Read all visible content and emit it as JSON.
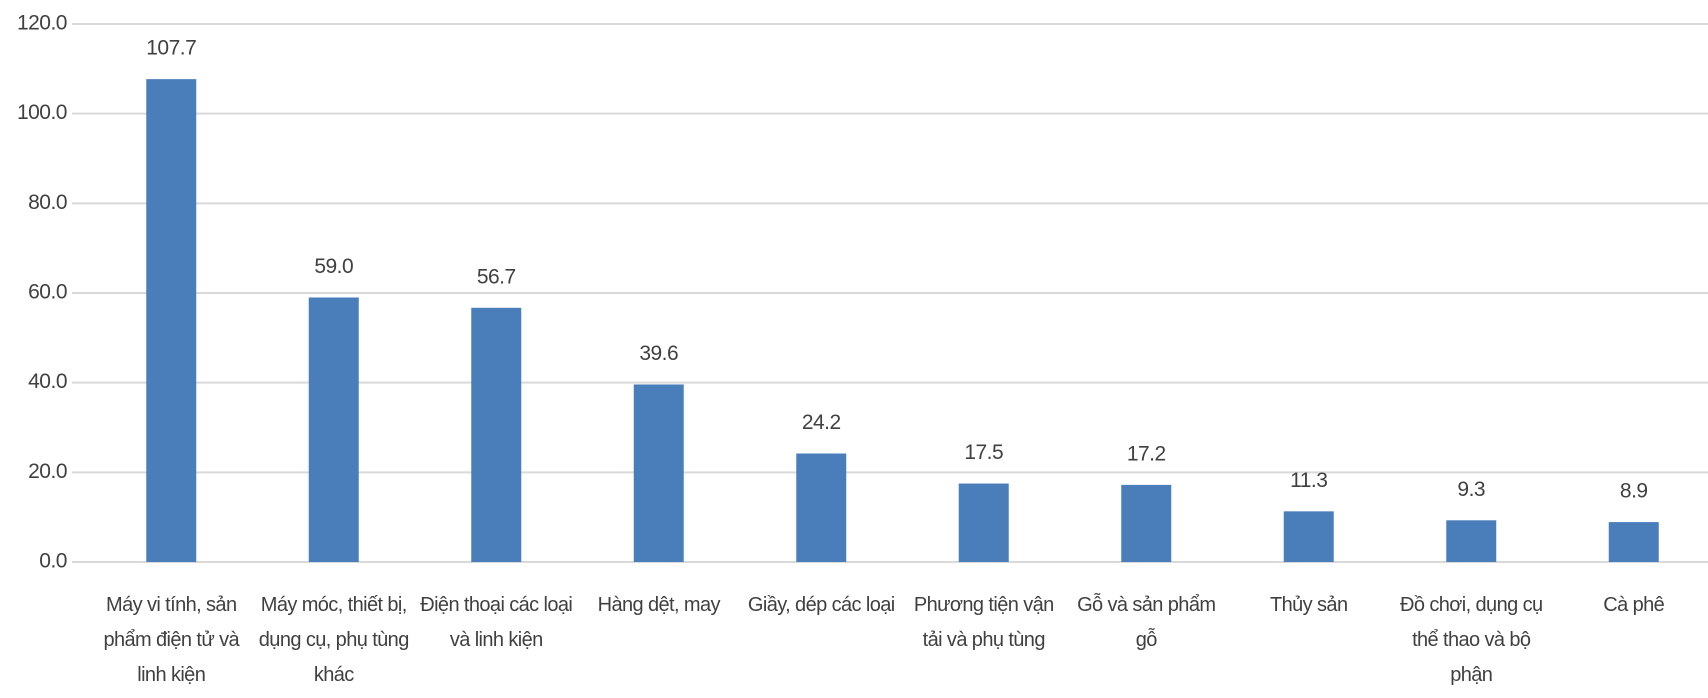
{
  "chart_data": {
    "type": "bar",
    "categories": [
      "Máy vi tính, sản phẩm điện tử và linh kiện",
      "Máy móc, thiết bị, dụng cụ, phụ tùng khác",
      "Điện thoại các loại và linh kiện",
      "Hàng dệt, may",
      "Giầy, dép các loại",
      "Phương tiện vận tải và phụ tùng",
      "Gỗ và sản phẩm gỗ",
      "Thủy sản",
      "Đồ chơi, dụng cụ thể thao và bộ phận",
      "Cà phê"
    ],
    "values": [
      107.7,
      59.0,
      56.7,
      39.6,
      24.2,
      17.5,
      17.2,
      11.3,
      9.3,
      8.9
    ],
    "value_labels": [
      "107.7",
      "59.0",
      "56.7",
      "39.6",
      "24.2",
      "17.5",
      "17.2",
      "11.3",
      "9.3",
      "8.9"
    ],
    "color": "#4a7ebb",
    "ylim": [
      0,
      120
    ],
    "yticks": [
      {
        "value": 0,
        "label": "0.0"
      },
      {
        "value": 20,
        "label": "20.0"
      },
      {
        "value": 40,
        "label": "40.0"
      },
      {
        "value": 60,
        "label": "60.0"
      },
      {
        "value": 80,
        "label": "80.0"
      },
      {
        "value": 100,
        "label": "100.0"
      },
      {
        "value": 120,
        "label": "120.0"
      }
    ],
    "grid": true
  }
}
